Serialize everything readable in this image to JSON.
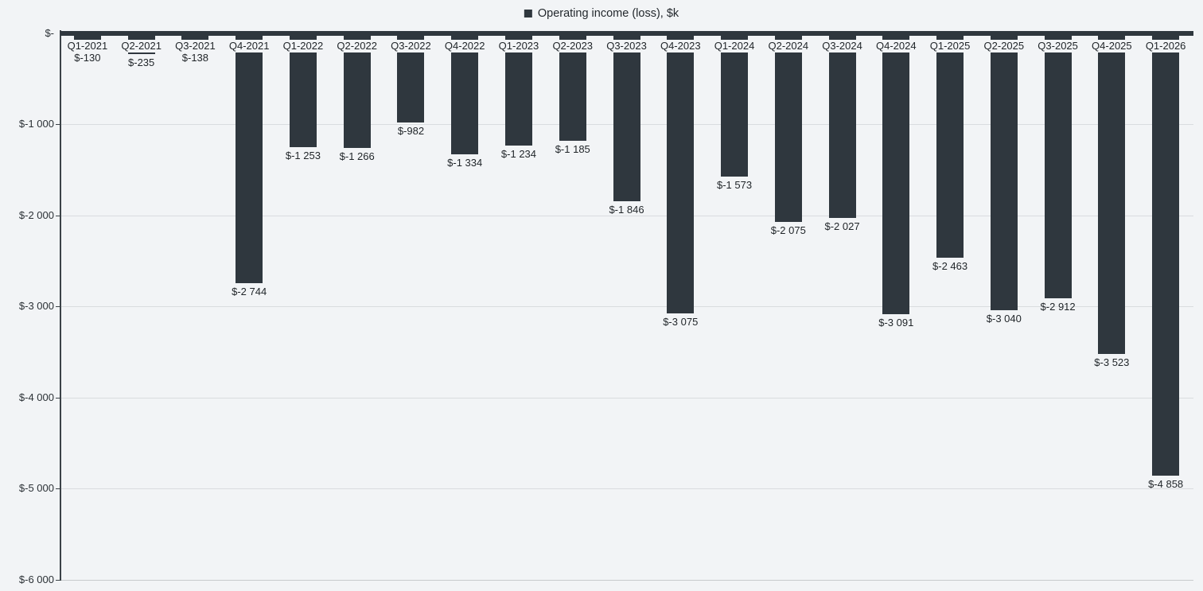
{
  "chart_data": {
    "type": "bar",
    "title": "Operating income (loss), $k",
    "categories": [
      "Q1-2021",
      "Q2-2021",
      "Q3-2021",
      "Q4-2021",
      "Q1-2022",
      "Q2-2022",
      "Q3-2022",
      "Q4-2022",
      "Q1-2023",
      "Q2-2023",
      "Q3-2023",
      "Q4-2023",
      "Q1-2024",
      "Q2-2024",
      "Q3-2024",
      "Q4-2024",
      "Q1-2025",
      "Q2-2025",
      "Q3-2025",
      "Q4-2025",
      "Q1-2026"
    ],
    "values": [
      -130,
      -235,
      -138,
      -2744,
      -1253,
      -1266,
      -982,
      -1334,
      -1234,
      -1185,
      -1846,
      -3075,
      -1573,
      -2075,
      -2027,
      -3091,
      -2463,
      -3040,
      -2912,
      -3523,
      -4858
    ],
    "data_labels": [
      "$-130",
      "$-235",
      "$-138",
      "$-2 744",
      "$-1 253",
      "$-1 266",
      "$-982",
      "$-1 334",
      "$-1 234",
      "$-1 185",
      "$-1 846",
      "$-3 075",
      "$-1 573",
      "$-2 075",
      "$-2 027",
      "$-3 091",
      "$-2 463",
      "$-3 040",
      "$-2 912",
      "$-3 523",
      "$-4 858"
    ],
    "xlabel": "",
    "ylabel": "",
    "ylim": [
      -6000,
      0
    ],
    "grid": true,
    "y_axis": {
      "tick_labels": [
        "$-",
        "$-1 000",
        "$-2 000",
        "$-3 000",
        "$-4 000",
        "$-5 000",
        "$-6 000"
      ],
      "tick_values": [
        0,
        -1000,
        -2000,
        -3000,
        -4000,
        -5000,
        -6000
      ]
    },
    "legend": {
      "label": "Operating income (loss), $k",
      "position": "top-center",
      "marker": "square"
    },
    "colors": {
      "bar": "#2f373e",
      "background": "#f2f4f6",
      "gridline": "#d9dcdf",
      "bottom_gridline": "#c7cacd",
      "axis": "#3b4247",
      "text": "#1f2428"
    }
  }
}
